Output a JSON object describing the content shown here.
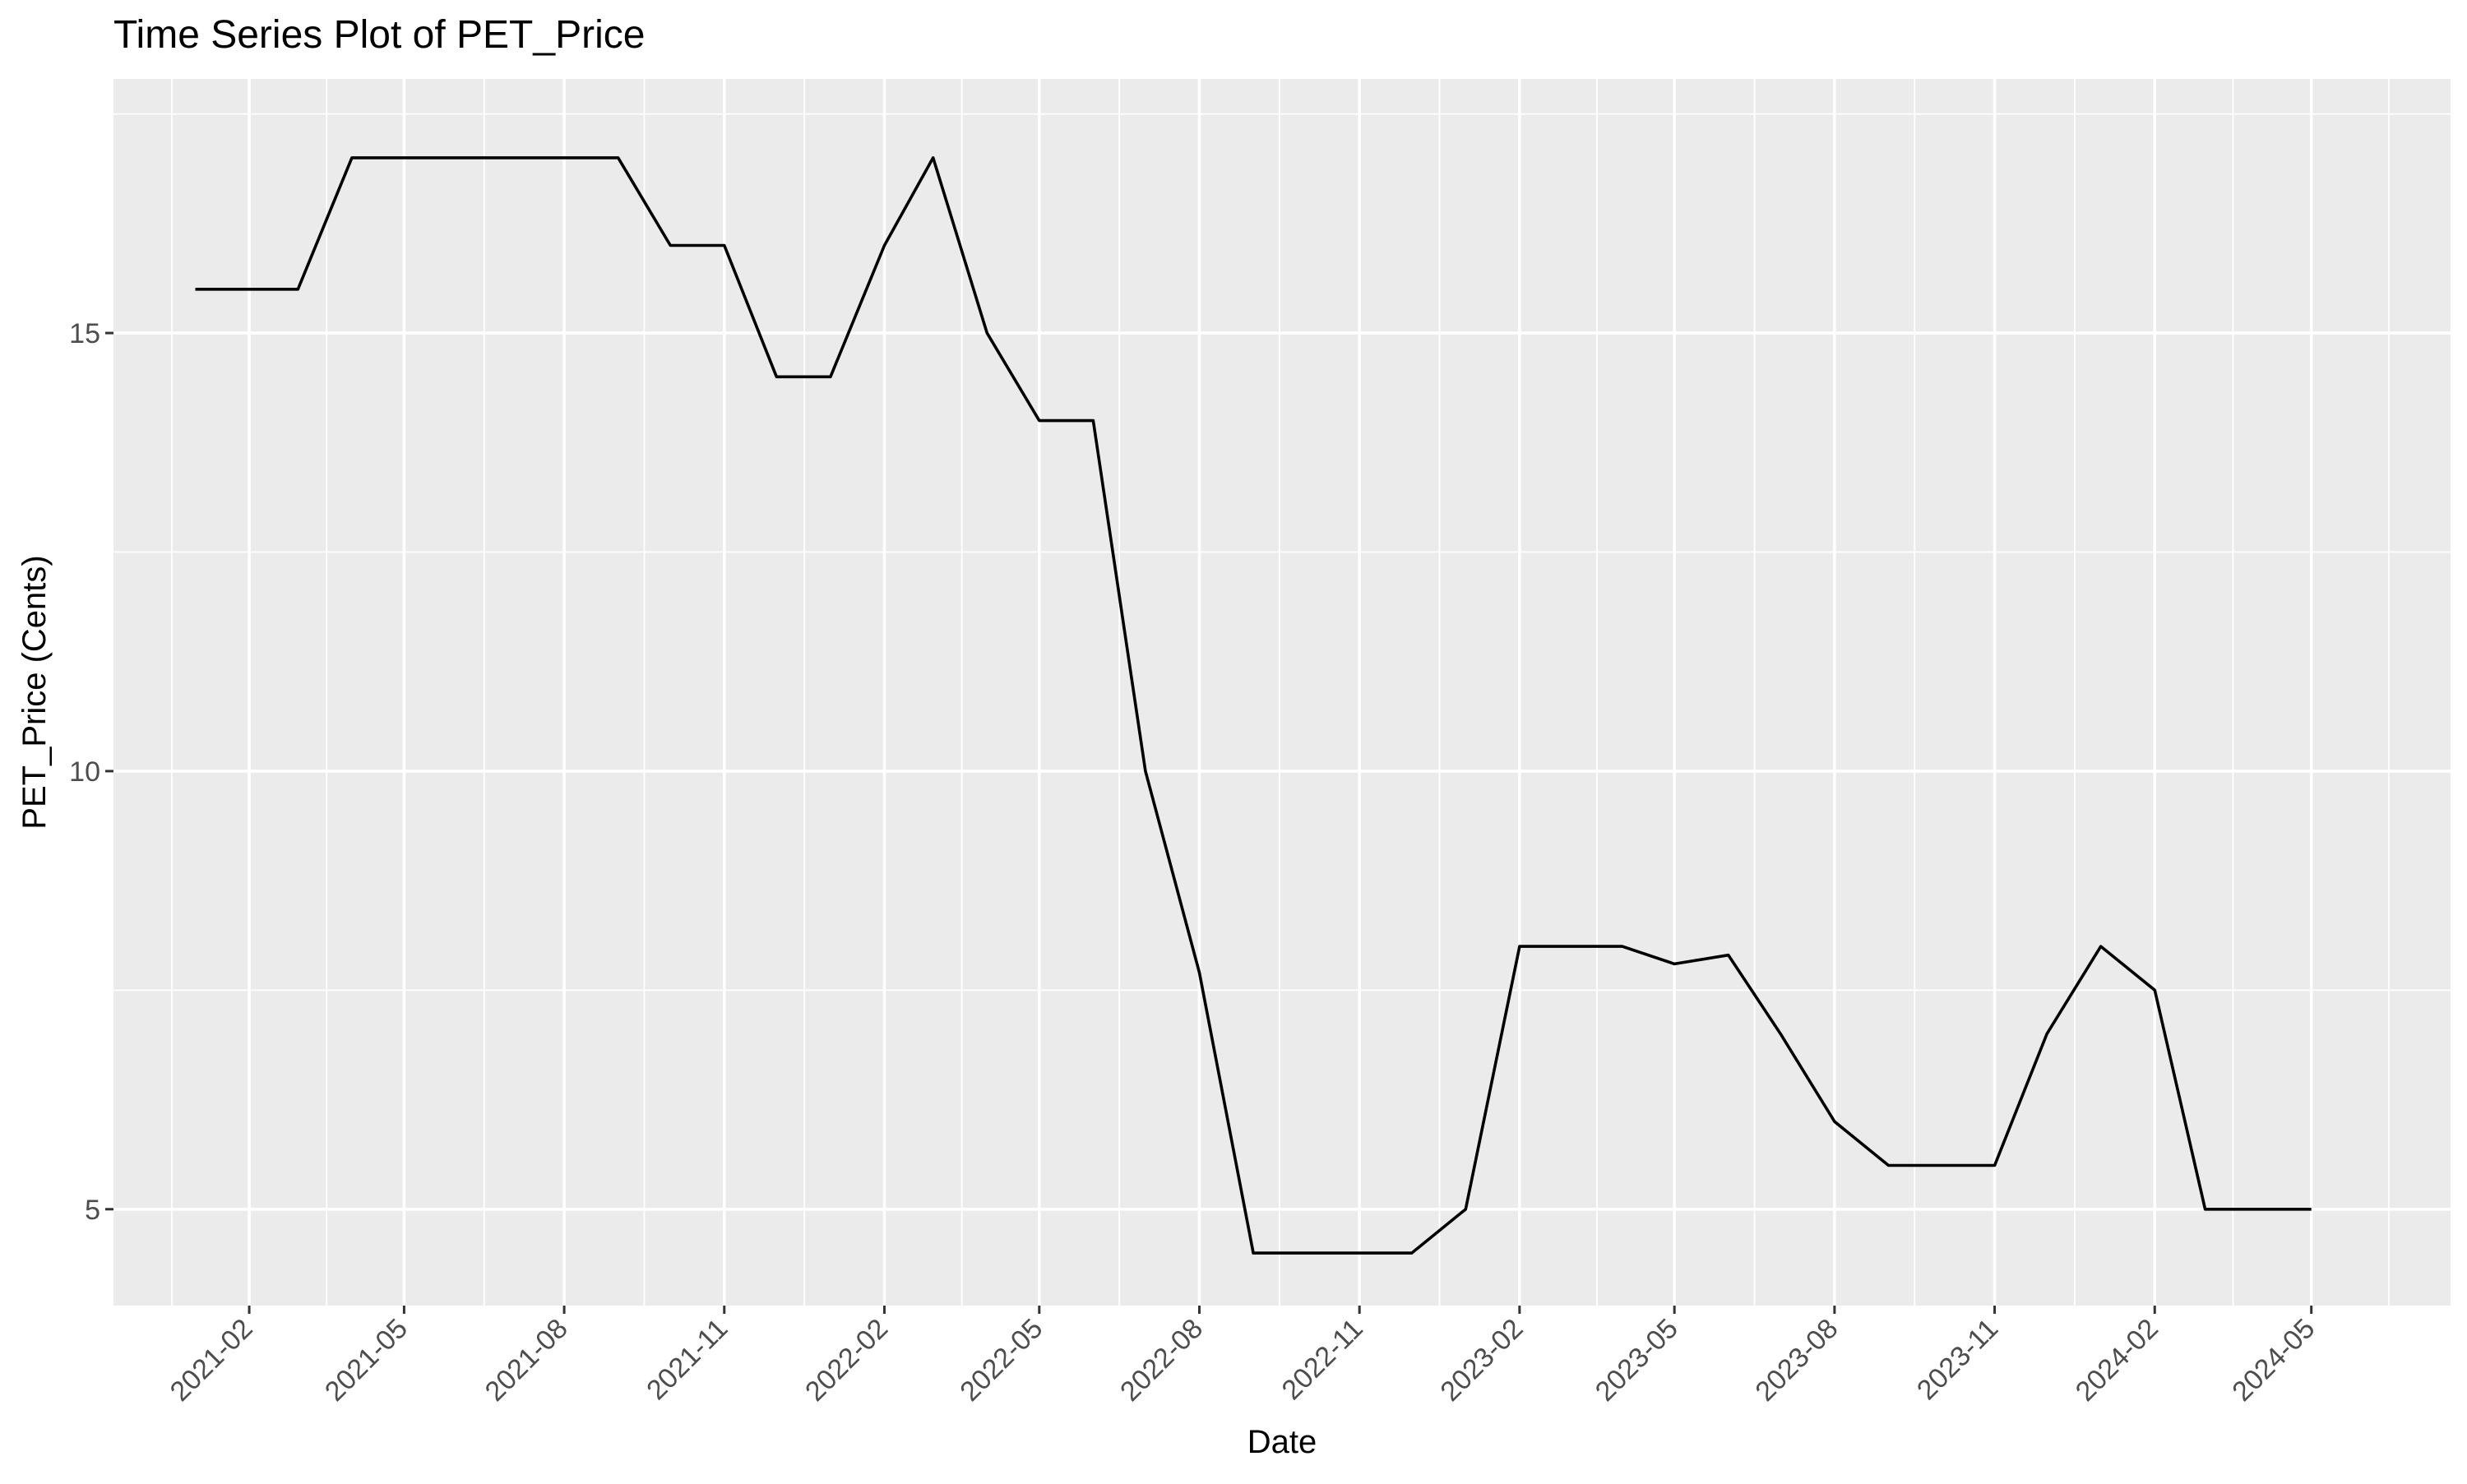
{
  "chart_data": {
    "type": "line",
    "title": "Time Series Plot of PET_Price",
    "xlabel": "Date",
    "ylabel": "PET_Price (Cents)",
    "x_range": [
      "2020-11-15",
      "2024-07-20"
    ],
    "ylim": [
      3.9,
      17.9
    ],
    "x_ticks": [
      "2021-02",
      "2021-05",
      "2021-08",
      "2021-11",
      "2022-02",
      "2022-05",
      "2022-08",
      "2022-11",
      "2023-02",
      "2023-05",
      "2023-08",
      "2023-11",
      "2024-02",
      "2024-05"
    ],
    "y_ticks": [
      5,
      10,
      15
    ],
    "y_minor_ticks": [
      7.5,
      12.5,
      17.5
    ],
    "grid": true,
    "panel_background": "#ebebeb",
    "grid_color": "#ffffff",
    "line_color": "#000000",
    "series": [
      {
        "x": [
          "2021-01-01",
          "2021-02-01",
          "2021-03-01",
          "2021-04-01",
          "2021-05-01",
          "2021-06-01",
          "2021-07-01",
          "2021-08-01",
          "2021-09-01",
          "2021-10-01",
          "2021-11-01",
          "2021-12-01",
          "2022-01-01",
          "2022-02-01",
          "2022-03-01",
          "2022-04-01",
          "2022-05-01",
          "2022-06-01",
          "2022-07-01",
          "2022-08-01",
          "2022-09-01",
          "2022-10-01",
          "2022-11-01",
          "2022-12-01",
          "2023-01-01",
          "2023-02-01",
          "2023-03-01",
          "2023-04-01",
          "2023-05-01",
          "2023-06-01",
          "2023-07-01",
          "2023-08-01",
          "2023-09-01",
          "2023-10-01",
          "2023-11-01",
          "2023-12-01",
          "2024-01-01",
          "2024-02-01",
          "2024-03-01",
          "2024-04-01",
          "2024-05-01"
        ],
        "values": [
          15.5,
          15.5,
          15.5,
          17,
          17,
          17,
          17,
          17,
          17,
          16,
          16,
          14.5,
          14.5,
          16,
          17,
          15,
          14,
          14,
          10,
          7.7,
          4.5,
          4.5,
          4.5,
          4.5,
          5,
          8,
          8,
          8,
          7.8,
          7.9,
          7,
          6,
          5.5,
          5.5,
          5.5,
          7,
          8,
          7.5,
          5,
          5,
          5
        ]
      }
    ]
  }
}
